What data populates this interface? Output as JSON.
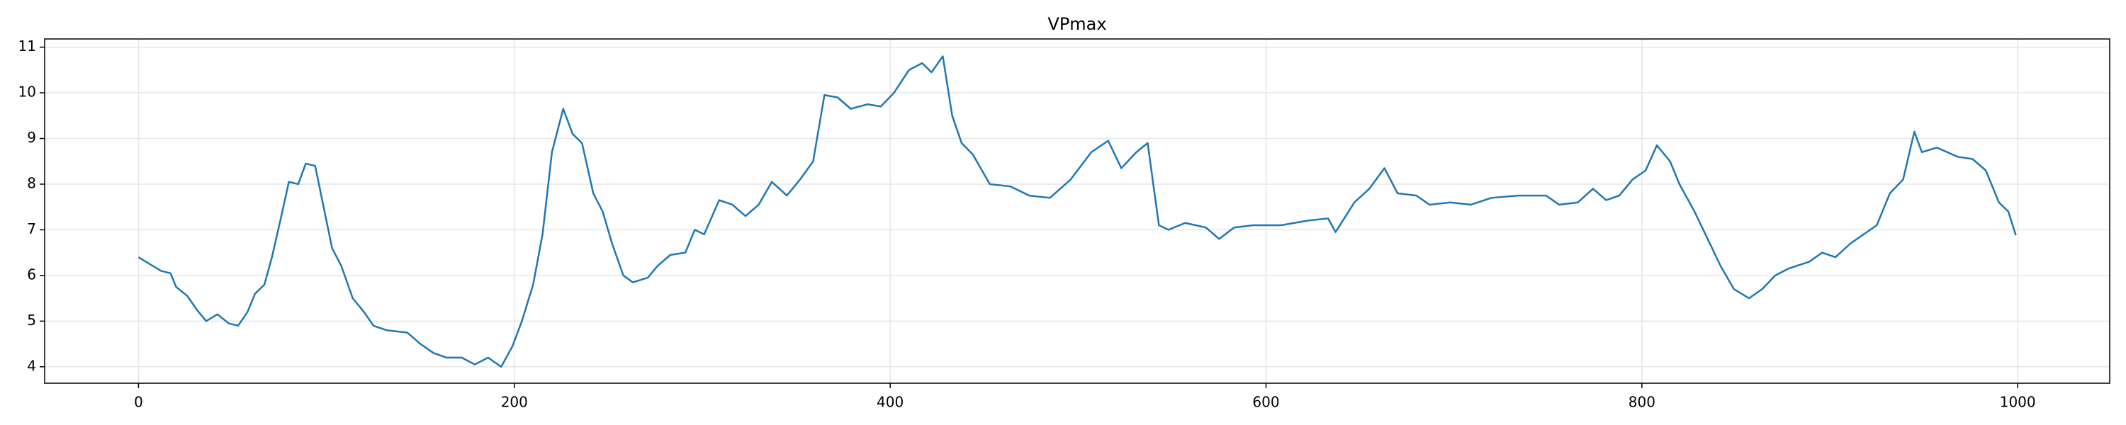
{
  "chart_data": {
    "type": "line",
    "title": "VPmax",
    "x": [
      0,
      6,
      12,
      17,
      20,
      26,
      31,
      36,
      42,
      48,
      53,
      58,
      62,
      67,
      71,
      76,
      80,
      85,
      89,
      94,
      98,
      103,
      108,
      114,
      120,
      125,
      132,
      143,
      150,
      157,
      164,
      172,
      179,
      186,
      193,
      199,
      204,
      210,
      215,
      220,
      226,
      231,
      236,
      242,
      247,
      252,
      258,
      263,
      271,
      276,
      283,
      291,
      296,
      301,
      309,
      316,
      323,
      330,
      337,
      345,
      352,
      359,
      365,
      372,
      379,
      388,
      395,
      402,
      410,
      417,
      422,
      428,
      433,
      438,
      444,
      453,
      464,
      474,
      485,
      496,
      507,
      516,
      523,
      531,
      537,
      543,
      548,
      557,
      568,
      575,
      583,
      593,
      608,
      622,
      633,
      637,
      647,
      655,
      663,
      670,
      680,
      687,
      698,
      709,
      720,
      734,
      749,
      756,
      766,
      774,
      781,
      788,
      795,
      802,
      808,
      815,
      820,
      828,
      835,
      842,
      849,
      857,
      864,
      871,
      878,
      889,
      896,
      903,
      911,
      918,
      925,
      932,
      939,
      945,
      949,
      957,
      968,
      976,
      983,
      990,
      995,
      999
    ],
    "series": [
      {
        "name": "VPmax",
        "color": "#1f77b4",
        "values": [
          6.4,
          6.25,
          6.1,
          6.05,
          5.75,
          5.55,
          5.25,
          5.0,
          5.15,
          4.95,
          4.9,
          5.2,
          5.6,
          5.8,
          6.4,
          7.3,
          8.05,
          8.0,
          8.45,
          8.4,
          7.6,
          6.6,
          6.2,
          5.5,
          5.2,
          4.9,
          4.8,
          4.75,
          4.5,
          4.3,
          4.2,
          4.2,
          4.05,
          4.2,
          4.0,
          4.45,
          5.0,
          5.8,
          6.9,
          8.7,
          9.65,
          9.1,
          8.9,
          7.8,
          7.4,
          6.7,
          6.0,
          5.85,
          5.95,
          6.2,
          6.45,
          6.5,
          7.0,
          6.9,
          7.65,
          7.55,
          7.3,
          7.55,
          8.05,
          7.75,
          8.1,
          8.5,
          9.95,
          9.9,
          9.65,
          9.75,
          9.7,
          10.0,
          10.5,
          10.65,
          10.45,
          10.8,
          9.5,
          8.9,
          8.65,
          8.0,
          7.95,
          7.75,
          7.7,
          8.1,
          8.7,
          8.95,
          8.35,
          8.7,
          8.9,
          7.1,
          7.0,
          7.15,
          7.05,
          6.8,
          7.05,
          7.1,
          7.1,
          7.2,
          7.25,
          6.95,
          7.6,
          7.9,
          8.35,
          7.8,
          7.75,
          7.55,
          7.6,
          7.55,
          7.7,
          7.75,
          7.75,
          7.55,
          7.6,
          7.9,
          7.65,
          7.75,
          8.1,
          8.3,
          8.85,
          8.5,
          8.0,
          7.4,
          6.8,
          6.2,
          5.7,
          5.5,
          5.7,
          6.0,
          6.15,
          6.3,
          6.5,
          6.4,
          6.7,
          6.9,
          7.1,
          7.8,
          8.1,
          9.15,
          8.7,
          8.8,
          8.6,
          8.55,
          8.3,
          7.6,
          7.4,
          6.88
        ]
      }
    ],
    "xlim": [
      -49.95,
      1048.95
    ],
    "ylim": [
      3.64,
      11.18
    ],
    "xticks": [
      0,
      200,
      400,
      600,
      800,
      1000
    ],
    "yticks": [
      4,
      5,
      6,
      7,
      8,
      9,
      10,
      11
    ],
    "grid": true
  }
}
